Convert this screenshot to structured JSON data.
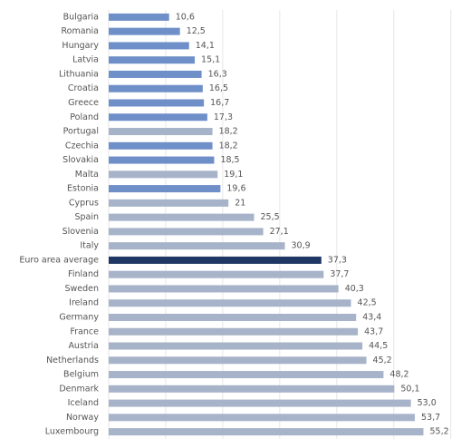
{
  "chart_data": {
    "type": "hbar",
    "categories": [
      "Bulgaria",
      "Romania",
      "Hungary",
      "Latvia",
      "Lithuania",
      "Croatia",
      "Greece",
      "Poland",
      "Portugal",
      "Czechia",
      "Slovakia",
      "Malta",
      "Estonia",
      "Cyprus",
      "Spain",
      "Slovenia",
      "Italy",
      "Euro area average",
      "Finland",
      "Sweden",
      "Ireland",
      "Germany",
      "France",
      "Austria",
      "Netherlands",
      "Belgium",
      "Denmark",
      "Iceland",
      "Norway",
      "Luxembourg"
    ],
    "values": [
      10.6,
      12.5,
      14.1,
      15.1,
      16.3,
      16.5,
      16.7,
      17.3,
      18.2,
      18.2,
      18.5,
      19.1,
      19.6,
      21,
      25.5,
      27.1,
      30.9,
      37.3,
      37.7,
      40.3,
      42.5,
      43.4,
      43.7,
      44.5,
      45.2,
      48.2,
      50.1,
      53.0,
      53.7,
      55.2
    ],
    "value_labels": [
      "10,6",
      "12,5",
      "14,1",
      "15,1",
      "16,3",
      "16,5",
      "16,7",
      "17,3",
      "18,2",
      "18,2",
      "18,5",
      "19,1",
      "19,6",
      "21",
      "25,5",
      "27,1",
      "30,9",
      "37,3",
      "37,7",
      "40,3",
      "42,5",
      "43,4",
      "43,7",
      "44,5",
      "45,2",
      "48,2",
      "50,1",
      "53,0",
      "53,7",
      "55,2"
    ],
    "colors": [
      "#6f8fc9",
      "#6f8fc9",
      "#6f8fc9",
      "#6f8fc9",
      "#6f8fc9",
      "#6f8fc9",
      "#6f8fc9",
      "#6f8fc9",
      "#a7b3c9",
      "#6f8fc9",
      "#6f8fc9",
      "#a7b3c9",
      "#6f8fc9",
      "#a7b3c9",
      "#a7b3c9",
      "#a7b3c9",
      "#a7b3c9",
      "#1f3763",
      "#a7b3c9",
      "#a7b3c9",
      "#a7b3c9",
      "#a7b3c9",
      "#a7b3c9",
      "#a7b3c9",
      "#a7b3c9",
      "#a7b3c9",
      "#a7b3c9",
      "#a7b3c9",
      "#a7b3c9",
      "#a7b3c9"
    ],
    "xlim": [
      0,
      61
    ],
    "xticks": [
      0,
      10,
      20,
      30,
      40,
      50,
      60
    ],
    "grid": true
  }
}
